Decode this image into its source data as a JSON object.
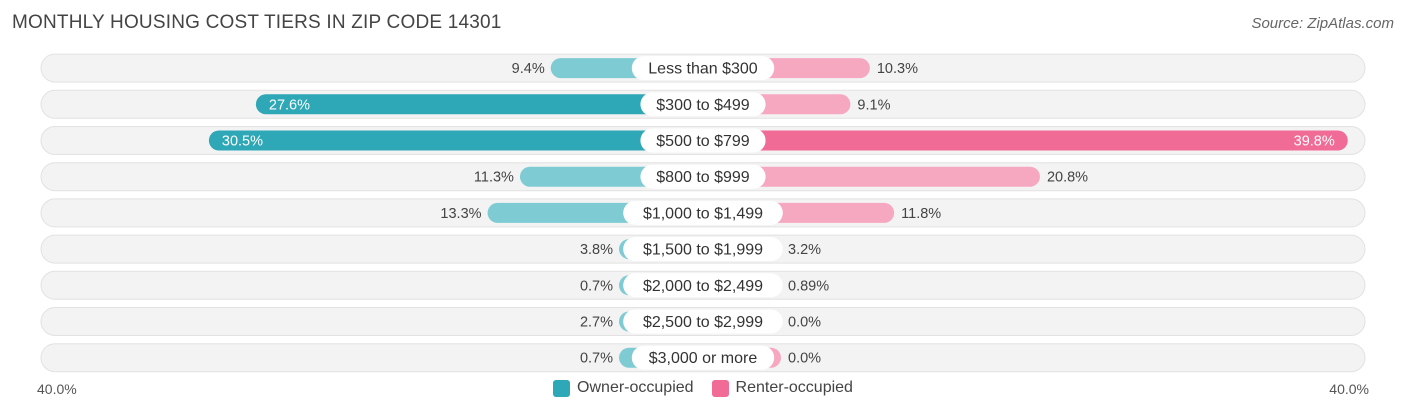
{
  "title": "MONTHLY HOUSING COST TIERS IN ZIP CODE 14301",
  "source": "Source: ZipAtlas.com",
  "colors": {
    "owner": "#2ea7b6",
    "owner_light": "#7fcbd4",
    "renter": "#f06b95",
    "renter_light": "#f7a8c1"
  },
  "chart_data": {
    "type": "bar",
    "orientation": "diverging-horizontal",
    "categories": [
      "Less than $300",
      "$300 to $499",
      "$500 to $799",
      "$800 to $999",
      "$1,000 to $1,499",
      "$1,500 to $1,999",
      "$2,000 to $2,499",
      "$2,500 to $2,999",
      "$3,000 or more"
    ],
    "series": [
      {
        "name": "Owner-occupied",
        "values": [
          9.4,
          27.6,
          30.5,
          11.3,
          13.3,
          3.8,
          0.7,
          2.7,
          0.7
        ],
        "labels": [
          "9.4%",
          "27.6%",
          "30.5%",
          "11.3%",
          "13.3%",
          "3.8%",
          "0.7%",
          "2.7%",
          "0.7%"
        ]
      },
      {
        "name": "Renter-occupied",
        "values": [
          10.3,
          9.1,
          39.8,
          20.8,
          11.8,
          3.2,
          0.89,
          0.0,
          0.0
        ],
        "labels": [
          "10.3%",
          "9.1%",
          "39.8%",
          "20.8%",
          "11.8%",
          "3.2%",
          "0.89%",
          "0.0%",
          "0.0%"
        ]
      }
    ],
    "axis_max": 40.0,
    "axis_left_label": "40.0%",
    "axis_right_label": "40.0%",
    "legend_position": "bottom-center"
  }
}
